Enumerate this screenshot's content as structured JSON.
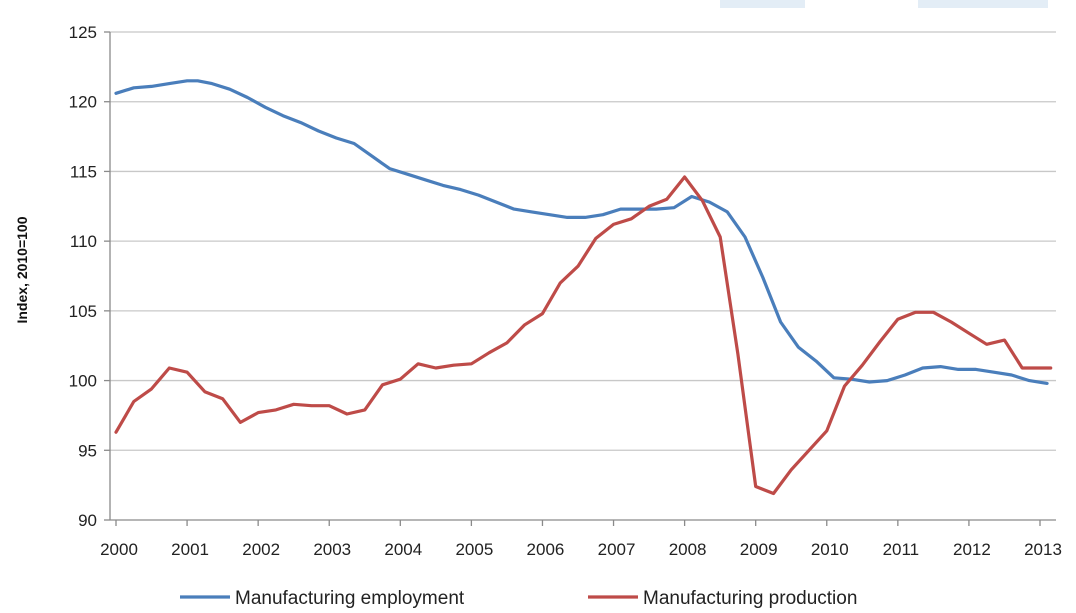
{
  "chart_data": {
    "type": "line",
    "title": "",
    "xlabel": "",
    "ylabel": "Index, 2010=100",
    "ylim": [
      90,
      125
    ],
    "yticks": [
      90,
      95,
      100,
      105,
      110,
      115,
      120,
      125
    ],
    "xlim": [
      2000,
      2013.15
    ],
    "xticks": [
      2000,
      2001,
      2002,
      2003,
      2004,
      2005,
      2006,
      2007,
      2008,
      2009,
      2010,
      2011,
      2012,
      2013
    ],
    "grid": "horizontal",
    "legend_position": "bottom",
    "series": [
      {
        "name": "Manufacturing employment",
        "color": "#4a7ebb",
        "x": [
          2000.0,
          2000.25,
          2000.5,
          2000.75,
          2001.0,
          2001.15,
          2001.35,
          2001.6,
          2001.85,
          2002.1,
          2002.35,
          2002.6,
          2002.85,
          2003.1,
          2003.35,
          2003.6,
          2003.85,
          2004.1,
          2004.35,
          2004.6,
          2004.85,
          2005.1,
          2005.35,
          2005.6,
          2005.85,
          2006.1,
          2006.35,
          2006.6,
          2006.85,
          2007.1,
          2007.35,
          2007.6,
          2007.85,
          2008.1,
          2008.35,
          2008.6,
          2008.85,
          2009.1,
          2009.35,
          2009.6,
          2009.85,
          2010.1,
          2010.35,
          2010.6,
          2010.85,
          2011.1,
          2011.35,
          2011.6,
          2011.85,
          2012.1,
          2012.35,
          2012.6,
          2012.85,
          2013.1
        ],
        "values": [
          120.6,
          121.0,
          121.1,
          121.3,
          121.5,
          121.5,
          121.3,
          120.9,
          120.3,
          119.6,
          119.0,
          118.5,
          117.9,
          117.4,
          117.0,
          116.1,
          115.2,
          114.8,
          114.4,
          114.0,
          113.7,
          113.3,
          112.8,
          112.3,
          112.1,
          111.9,
          111.7,
          111.7,
          111.9,
          112.3,
          112.3,
          112.3,
          112.4,
          113.2,
          112.8,
          112.1,
          110.3,
          107.4,
          104.2,
          102.4,
          101.4,
          100.2,
          100.1,
          99.9,
          100.0,
          100.4,
          100.9,
          101.0,
          100.8,
          100.8,
          100.6,
          100.4,
          100.0,
          99.8
        ]
      },
      {
        "name": "Manufacturing production",
        "color": "#be4b48",
        "x": [
          2000.0,
          2000.25,
          2000.5,
          2000.75,
          2001.0,
          2001.25,
          2001.5,
          2001.75,
          2002.0,
          2002.25,
          2002.5,
          2002.75,
          2003.0,
          2003.25,
          2003.5,
          2003.75,
          2004.0,
          2004.25,
          2004.5,
          2004.75,
          2005.0,
          2005.25,
          2005.5,
          2005.75,
          2006.0,
          2006.25,
          2006.5,
          2006.75,
          2007.0,
          2007.25,
          2007.5,
          2007.75,
          2008.0,
          2008.25,
          2008.5,
          2008.75,
          2009.0,
          2009.25,
          2009.5,
          2009.75,
          2010.0,
          2010.25,
          2010.5,
          2010.75,
          2011.0,
          2011.25,
          2011.5,
          2011.75,
          2012.0,
          2012.25,
          2012.5,
          2012.75,
          2013.0,
          2013.15
        ],
        "values": [
          96.3,
          98.5,
          99.4,
          100.9,
          100.6,
          99.2,
          98.7,
          97.0,
          97.7,
          97.9,
          98.3,
          98.2,
          98.2,
          97.6,
          97.9,
          99.7,
          100.1,
          101.2,
          100.9,
          101.1,
          101.2,
          102.0,
          102.7,
          104.0,
          104.8,
          107.0,
          108.2,
          110.2,
          111.2,
          111.6,
          112.5,
          113.0,
          114.6,
          112.9,
          110.3,
          101.9,
          92.4,
          91.9,
          93.6,
          95.0,
          96.4,
          99.6,
          101.1,
          102.8,
          104.4,
          104.9,
          104.9,
          104.2,
          103.4,
          102.6,
          102.9,
          100.9,
          100.9,
          100.9
        ]
      }
    ]
  }
}
